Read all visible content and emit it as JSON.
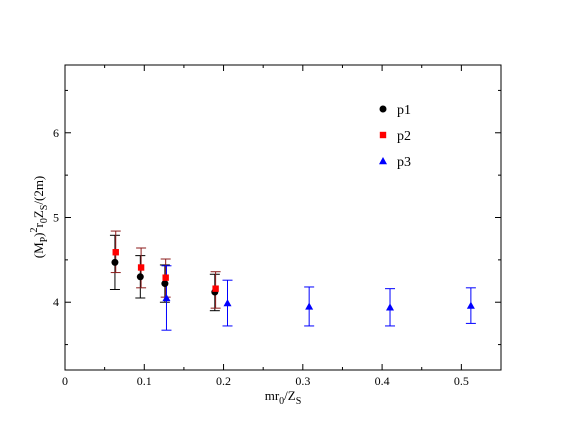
{
  "chart_data": {
    "type": "scatter",
    "xlabel": {
      "main": "mr",
      "sub1": "0",
      "slash": "/Z",
      "sub2": "S"
    },
    "ylabel": {
      "p1": "(M",
      "p1sub": "P",
      "p2": ")",
      "p2sup": "2",
      "p3": "r",
      "p3sub": "0",
      "p4": "Z",
      "p4sub": "S",
      "p5": "/(2m)"
    },
    "xlim": [
      0,
      0.55
    ],
    "ylim": [
      3.2,
      6.8
    ],
    "xticks": [
      0,
      0.1,
      0.2,
      0.3,
      0.4,
      0.5
    ],
    "xtick_labels": [
      "0",
      "0.1",
      "0.2",
      "0.3",
      "0.4",
      "0.5"
    ],
    "yticks": [
      4,
      5,
      6
    ],
    "ytick_labels": [
      "4",
      "5",
      "6"
    ],
    "legend_position": "top-right",
    "series": [
      {
        "name": "p1",
        "marker": "circle",
        "color": "#000000",
        "errcolor": "#000000",
        "points": [
          {
            "x": 0.063,
            "y": 4.47,
            "lo": 4.15,
            "hi": 4.79
          },
          {
            "x": 0.095,
            "y": 4.3,
            "lo": 4.05,
            "hi": 4.55
          },
          {
            "x": 0.126,
            "y": 4.22,
            "lo": 4.0,
            "hi": 4.44
          },
          {
            "x": 0.189,
            "y": 4.12,
            "lo": 3.9,
            "hi": 4.33
          }
        ]
      },
      {
        "name": "p2",
        "marker": "square",
        "color": "#ff0000",
        "errcolor": "#8b1a1a",
        "points": [
          {
            "x": 0.064,
            "y": 4.59,
            "lo": 4.35,
            "hi": 4.84
          },
          {
            "x": 0.096,
            "y": 4.41,
            "lo": 4.17,
            "hi": 4.64
          },
          {
            "x": 0.127,
            "y": 4.29,
            "lo": 4.06,
            "hi": 4.51
          },
          {
            "x": 0.19,
            "y": 4.16,
            "lo": 3.93,
            "hi": 4.36
          }
        ]
      },
      {
        "name": "p3",
        "marker": "triangle",
        "color": "#0000ff",
        "errcolor": "#0000ff",
        "points": [
          {
            "x": 0.128,
            "y": 4.05,
            "lo": 3.67,
            "hi": 4.43
          },
          {
            "x": 0.205,
            "y": 3.99,
            "lo": 3.72,
            "hi": 4.26
          },
          {
            "x": 0.308,
            "y": 3.95,
            "lo": 3.72,
            "hi": 4.18
          },
          {
            "x": 0.41,
            "y": 3.94,
            "lo": 3.72,
            "hi": 4.16
          },
          {
            "x": 0.512,
            "y": 3.96,
            "lo": 3.75,
            "hi": 4.17
          }
        ]
      }
    ]
  }
}
